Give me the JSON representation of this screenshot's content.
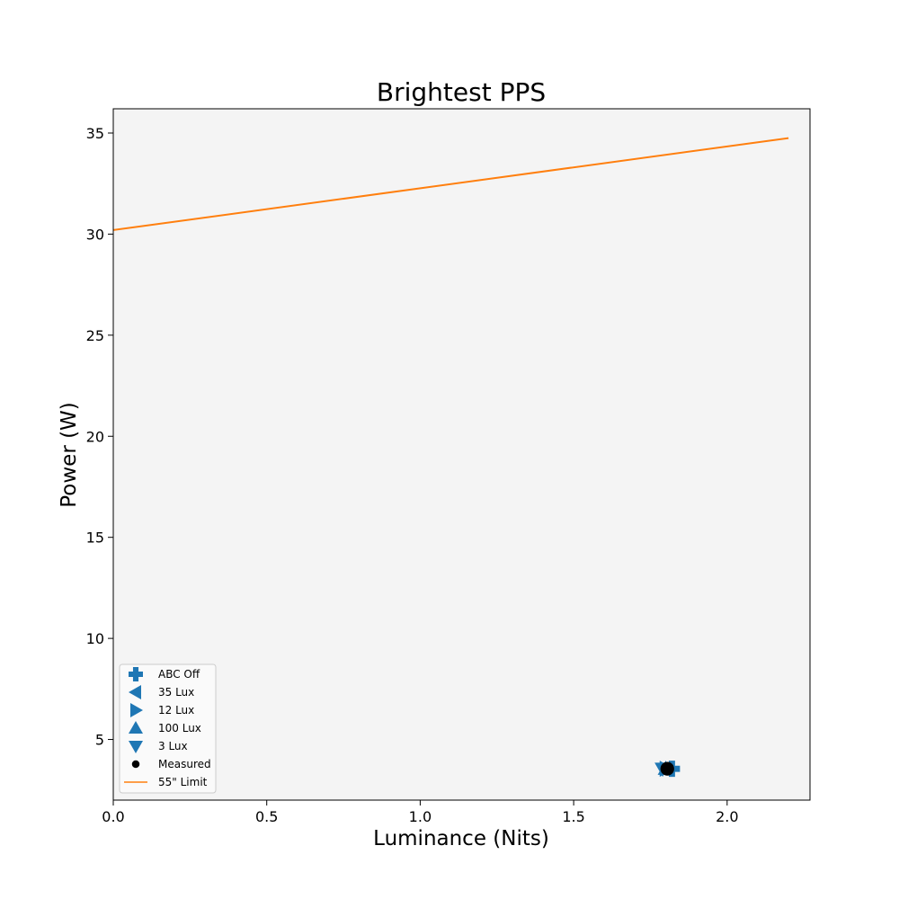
{
  "chart_data": {
    "type": "scatter",
    "title": "Brightest PPS",
    "xlabel": "Luminance (Nits)",
    "ylabel": "Power (W)",
    "xlim": [
      0.0,
      2.27
    ],
    "ylim": [
      2.0,
      36.2
    ],
    "xticks": [
      0.0,
      0.5,
      1.0,
      1.5,
      2.0
    ],
    "xtick_labels": [
      "0.0",
      "0.5",
      "1.0",
      "1.5",
      "2.0"
    ],
    "yticks": [
      5,
      10,
      15,
      20,
      25,
      30,
      35
    ],
    "ytick_labels": [
      "5",
      "10",
      "15",
      "20",
      "25",
      "30",
      "35"
    ],
    "grid": false,
    "background": "#f4f4f4",
    "legend_position": "lower-left",
    "series": [
      {
        "name": "ABC Off",
        "marker": "plus",
        "color": "#1f77b4",
        "points": [
          {
            "x": 1.82,
            "y": 3.55
          }
        ]
      },
      {
        "name": "35 Lux",
        "marker": "triangle-left",
        "color": "#1f77b4",
        "points": [
          {
            "x": 1.81,
            "y": 3.55
          }
        ]
      },
      {
        "name": "12 Lux",
        "marker": "triangle-right",
        "color": "#1f77b4",
        "points": [
          {
            "x": 1.8,
            "y": 3.55
          }
        ]
      },
      {
        "name": "100 Lux",
        "marker": "triangle-up",
        "color": "#1f77b4",
        "points": [
          {
            "x": 1.8,
            "y": 3.55
          }
        ]
      },
      {
        "name": "3 Lux",
        "marker": "triangle-down",
        "color": "#1f77b4",
        "points": [
          {
            "x": 1.79,
            "y": 3.55
          }
        ]
      },
      {
        "name": "Measured",
        "marker": "circle",
        "color": "#000000",
        "points": [
          {
            "x": 1.805,
            "y": 3.55
          }
        ]
      },
      {
        "name": "55\" Limit",
        "marker": "line",
        "color": "#ff7f0e",
        "points": [
          {
            "x": 0.0,
            "y": 30.2
          },
          {
            "x": 2.2,
            "y": 34.75
          }
        ]
      }
    ]
  }
}
